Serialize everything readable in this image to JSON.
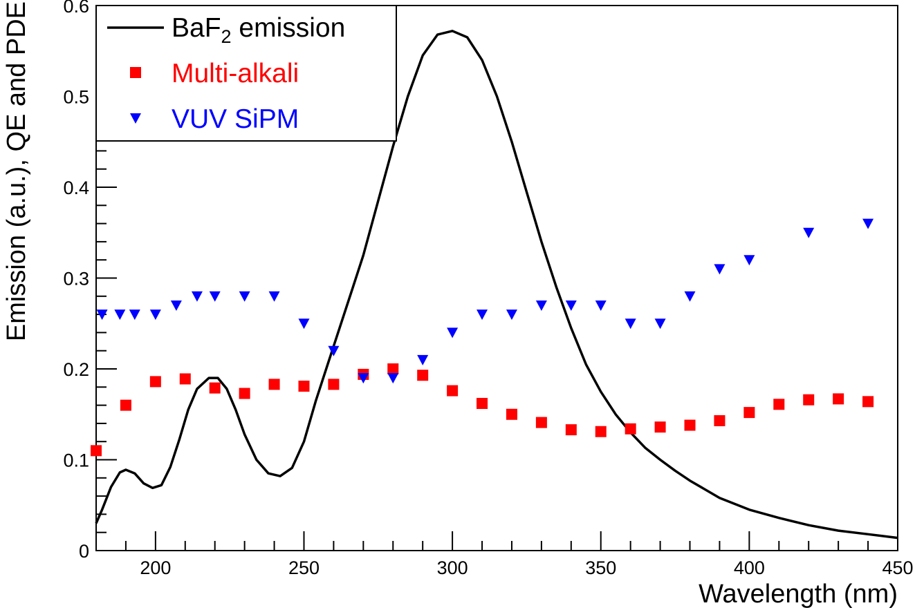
{
  "chart_data": {
    "type": "line",
    "title": "",
    "xlabel": "Wavelength (nm)",
    "ylabel": "Emission (a.u.), QE and PDE",
    "xlim": [
      180,
      450
    ],
    "ylim": [
      0,
      0.6
    ],
    "x_ticks": [
      {
        "value": 200,
        "label": "200"
      },
      {
        "value": 250,
        "label": "250"
      },
      {
        "value": 300,
        "label": "300"
      },
      {
        "value": 350,
        "label": "350"
      },
      {
        "value": 400,
        "label": "400"
      },
      {
        "value": 450,
        "label": "450"
      }
    ],
    "y_ticks": [
      {
        "value": 0,
        "label": "0"
      },
      {
        "value": 0.1,
        "label": "0.1"
      },
      {
        "value": 0.2,
        "label": "0.2"
      },
      {
        "value": 0.3,
        "label": "0.3"
      },
      {
        "value": 0.4,
        "label": "0.4"
      },
      {
        "value": 0.5,
        "label": "0.5"
      },
      {
        "value": 0.6,
        "label": "0.6"
      }
    ],
    "legend": {
      "position": "top-left",
      "entries": [
        {
          "name_main": "BaF",
          "name_sub": "2",
          "name_rest": " emission",
          "style": "line",
          "color": "#000000"
        },
        {
          "name": "Multi-alkali",
          "style": "square",
          "color": "#ff0000"
        },
        {
          "name": "VUV SiPM",
          "style": "triangle-down",
          "color": "#0000ff"
        }
      ]
    },
    "series": [
      {
        "name": "BaF2 emission",
        "style": "line",
        "color": "#000000",
        "x": [
          180,
          182,
          185,
          188,
          190,
          193,
          196,
          199,
          202,
          205,
          208,
          211,
          214,
          218,
          221,
          224,
          227,
          230,
          234,
          238,
          242,
          246,
          250,
          254,
          258,
          262,
          266,
          270,
          275,
          280,
          285,
          290,
          295,
          300,
          305,
          310,
          315,
          320,
          325,
          330,
          335,
          340,
          345,
          350,
          355,
          360,
          365,
          370,
          375,
          380,
          390,
          400,
          410,
          420,
          430,
          440,
          450
        ],
        "y": [
          0.03,
          0.045,
          0.07,
          0.086,
          0.089,
          0.085,
          0.074,
          0.069,
          0.072,
          0.092,
          0.122,
          0.155,
          0.178,
          0.19,
          0.19,
          0.178,
          0.155,
          0.128,
          0.1,
          0.085,
          0.082,
          0.091,
          0.12,
          0.165,
          0.205,
          0.245,
          0.285,
          0.325,
          0.385,
          0.445,
          0.5,
          0.545,
          0.568,
          0.572,
          0.565,
          0.54,
          0.5,
          0.45,
          0.395,
          0.34,
          0.29,
          0.245,
          0.205,
          0.175,
          0.15,
          0.13,
          0.113,
          0.1,
          0.088,
          0.077,
          0.058,
          0.045,
          0.036,
          0.028,
          0.022,
          0.018,
          0.014
        ]
      },
      {
        "name": "Multi-alkali",
        "style": "square",
        "color": "#ff0000",
        "x": [
          180,
          190,
          200,
          210,
          220,
          230,
          240,
          250,
          260,
          270,
          280,
          290,
          300,
          310,
          320,
          330,
          340,
          350,
          360,
          370,
          380,
          390,
          400,
          410,
          420,
          430,
          440
        ],
        "y": [
          0.11,
          0.16,
          0.186,
          0.189,
          0.179,
          0.173,
          0.183,
          0.181,
          0.183,
          0.194,
          0.2,
          0.193,
          0.176,
          0.162,
          0.15,
          0.141,
          0.133,
          0.131,
          0.134,
          0.136,
          0.138,
          0.143,
          0.152,
          0.161,
          0.166,
          0.167,
          0.164
        ]
      },
      {
        "name": "VUV SiPM",
        "style": "triangle-down",
        "color": "#0000ff",
        "x": [
          182,
          188,
          193,
          200,
          207,
          214,
          220,
          230,
          240,
          250,
          260,
          270,
          280,
          290,
          300,
          310,
          320,
          330,
          340,
          350,
          360,
          370,
          380,
          390,
          400,
          420,
          440
        ],
        "y": [
          0.26,
          0.26,
          0.26,
          0.26,
          0.27,
          0.28,
          0.28,
          0.28,
          0.28,
          0.25,
          0.22,
          0.19,
          0.19,
          0.21,
          0.24,
          0.26,
          0.26,
          0.27,
          0.27,
          0.27,
          0.25,
          0.25,
          0.28,
          0.31,
          0.32,
          0.35,
          0.36
        ]
      }
    ]
  }
}
